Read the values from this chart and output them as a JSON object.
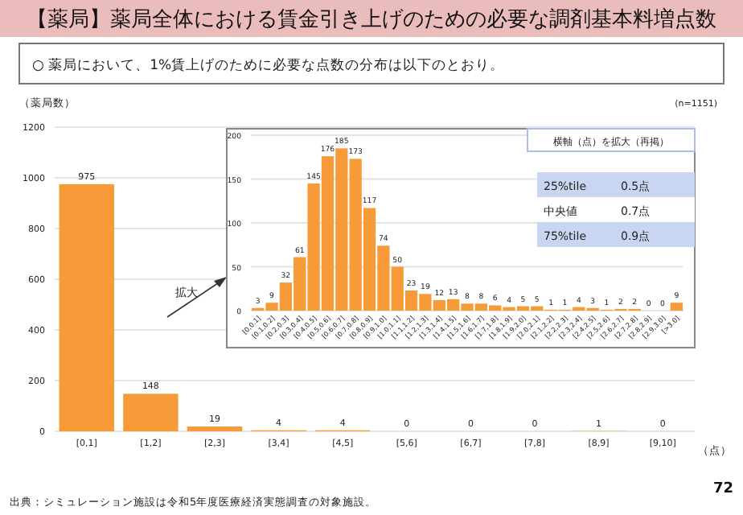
{
  "chart_data": [
    {
      "type": "bar",
      "title": "【薬局】薬局全体における賃金引き上げのための必要な調剤基本料増点数",
      "subtitle": "○ 薬局において、1%賃上げのために必要な点数の分布は以下のとおり。",
      "ylabel": "（薬局数）",
      "xlabel": "（点）",
      "annotations": [
        "(n=1151)",
        "出典：シミュレーション施設は令和5年度医療経済実態調査の対象施設。",
        "72",
        "拡大"
      ],
      "categories": [
        "[0,1]",
        "[1,2]",
        "[2,3]",
        "[3,4]",
        "[4,5]",
        "[5,6]",
        "[6,7]",
        "[7,8]",
        "[8,9]",
        "[9,10]"
      ],
      "values": [
        975,
        148,
        19,
        4,
        4,
        0,
        0,
        0,
        1,
        0
      ],
      "color": "#f79a38",
      "ylim": [
        0,
        1200
      ],
      "yticks": [
        0,
        200,
        400,
        600,
        800,
        1000,
        1200
      ],
      "grid": "y",
      "data_labels": true
    },
    {
      "type": "bar",
      "categories": [
        "[0,0.1]",
        "[0.1,0.2]",
        "[0.2,0.3]",
        "[0.3,0.4]",
        "[0.4,0.5]",
        "[0.5,0.6]",
        "[0.6,0.7]",
        "[0.7,0.8]",
        "[0.8,0.9]",
        "[0.9,1.0]",
        "[1.0,1.1]",
        "[1.1,1.2]",
        "[1.2,1.3]",
        "[1.3,1.4]",
        "[1.4,1.5]",
        "[1.5,1.6]",
        "[1.6,1.7]",
        "[1.7,1.8]",
        "[1.8,1.9]",
        "[1.9,2.0]",
        "[2.0,2.1]",
        "[2.1,2.2]",
        "[2.2,2.3]",
        "[2.3,2.4]",
        "[2.4,2.5]",
        "[2.5,2.6]",
        "[2.6,2.7]",
        "[2.7,2.8]",
        "[2.8,2.9]",
        "[2.9,3.0]",
        "[>3.0]"
      ],
      "values": [
        3,
        9,
        32,
        61,
        145,
        176,
        185,
        173,
        117,
        74,
        50,
        23,
        19,
        12,
        13,
        8,
        8,
        6,
        4,
        5,
        5,
        1,
        1,
        4,
        3,
        1,
        2,
        2,
        0,
        0,
        9
      ],
      "color": "#f79a38",
      "ylim": [
        0,
        200
      ],
      "yticks": [
        0,
        50,
        100,
        150,
        200
      ],
      "grid": "y",
      "data_labels": true
    },
    {
      "type": "other",
      "title": "横軸（点）を拡大（再掲）",
      "annotations": [
        "25%tile",
        "0.5点",
        "中央値",
        "0.7点",
        "75%tile",
        "0.9点"
      ]
    }
  ]
}
